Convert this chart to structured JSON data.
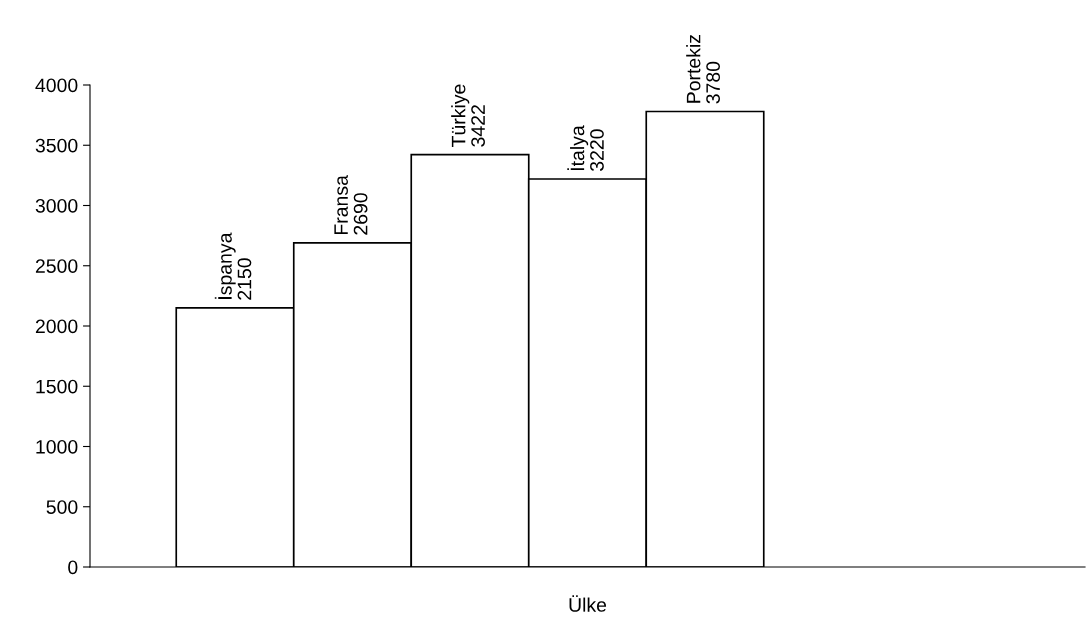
{
  "chart_data": {
    "type": "bar",
    "xlabel": "Ülke",
    "categories": [
      "İspanya",
      "Fransa",
      "Türkiye",
      "İtalya",
      "Portekiz"
    ],
    "values": [
      2150,
      2690,
      3422,
      3220,
      3780
    ],
    "color": "#ffffff",
    "ylim": [
      0,
      4000
    ],
    "yticks": [
      0,
      500,
      1000,
      1500,
      2000,
      2500,
      3000,
      3500,
      4000
    ],
    "data_labels": true,
    "grid": false,
    "legend": false
  }
}
